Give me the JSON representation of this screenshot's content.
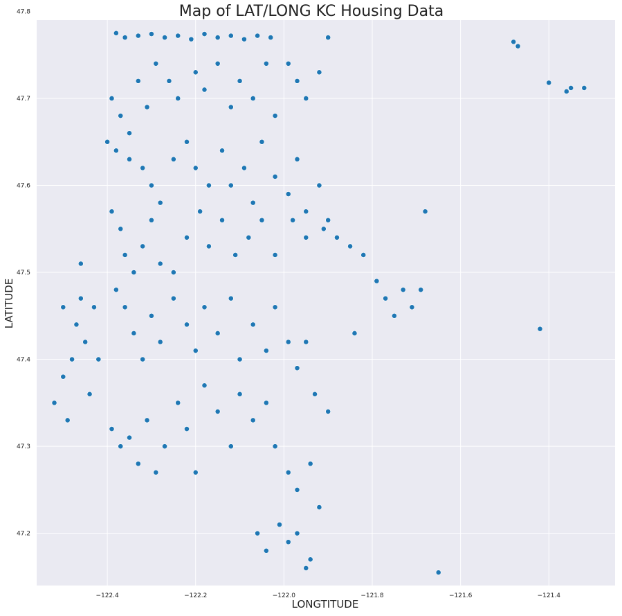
{
  "chart_data": {
    "type": "scatter",
    "title": "Map of LAT/LONG KC Housing Data",
    "xlabel": "LONGTITUDE",
    "ylabel": "LATITUDE",
    "xlim": [
      -122.56,
      -121.25
    ],
    "ylim": [
      47.14,
      47.79
    ],
    "xticks": [
      "-122.4",
      "-122.2",
      "-122.0",
      "-121.8",
      "-121.6",
      "-121.4"
    ],
    "yticks": [
      "47.2",
      "47.3",
      "47.4",
      "47.5",
      "47.6",
      "47.7",
      "47.8"
    ],
    "grid": true,
    "colors": {
      "point": "#1f77b4",
      "point_edge": "#ffffff",
      "plot_bg": "#eaeaf2",
      "grid": "#ffffff"
    },
    "series": [
      {
        "points": [
          [
            -122.38,
            47.775
          ],
          [
            -122.36,
            47.77
          ],
          [
            -122.33,
            47.772
          ],
          [
            -122.3,
            47.774
          ],
          [
            -122.27,
            47.77
          ],
          [
            -122.24,
            47.772
          ],
          [
            -122.21,
            47.768
          ],
          [
            -122.18,
            47.774
          ],
          [
            -122.15,
            47.77
          ],
          [
            -122.12,
            47.772
          ],
          [
            -122.09,
            47.768
          ],
          [
            -122.06,
            47.772
          ],
          [
            -122.03,
            47.77
          ],
          [
            -122.39,
            47.7
          ],
          [
            -122.37,
            47.68
          ],
          [
            -122.35,
            47.66
          ],
          [
            -122.33,
            47.72
          ],
          [
            -122.31,
            47.69
          ],
          [
            -122.29,
            47.74
          ],
          [
            -122.26,
            47.72
          ],
          [
            -122.24,
            47.7
          ],
          [
            -122.2,
            47.73
          ],
          [
            -122.18,
            47.71
          ],
          [
            -122.15,
            47.74
          ],
          [
            -122.12,
            47.69
          ],
          [
            -122.1,
            47.72
          ],
          [
            -122.07,
            47.7
          ],
          [
            -122.04,
            47.74
          ],
          [
            -122.02,
            47.68
          ],
          [
            -121.99,
            47.74
          ],
          [
            -121.97,
            47.72
          ],
          [
            -121.95,
            47.7
          ],
          [
            -121.92,
            47.73
          ],
          [
            -121.9,
            47.77
          ],
          [
            -122.4,
            47.65
          ],
          [
            -122.38,
            47.64
          ],
          [
            -122.35,
            47.63
          ],
          [
            -122.32,
            47.62
          ],
          [
            -122.3,
            47.6
          ],
          [
            -122.28,
            47.58
          ],
          [
            -122.25,
            47.63
          ],
          [
            -122.22,
            47.65
          ],
          [
            -122.2,
            47.62
          ],
          [
            -122.17,
            47.6
          ],
          [
            -122.14,
            47.64
          ],
          [
            -122.12,
            47.6
          ],
          [
            -122.09,
            47.62
          ],
          [
            -122.07,
            47.58
          ],
          [
            -122.05,
            47.65
          ],
          [
            -122.02,
            47.61
          ],
          [
            -121.99,
            47.59
          ],
          [
            -121.97,
            47.63
          ],
          [
            -121.95,
            47.57
          ],
          [
            -121.92,
            47.6
          ],
          [
            -121.9,
            47.56
          ],
          [
            -122.39,
            47.57
          ],
          [
            -122.37,
            47.55
          ],
          [
            -122.36,
            47.52
          ],
          [
            -122.34,
            47.5
          ],
          [
            -122.32,
            47.53
          ],
          [
            -122.3,
            47.56
          ],
          [
            -122.28,
            47.51
          ],
          [
            -122.25,
            47.5
          ],
          [
            -122.22,
            47.54
          ],
          [
            -122.19,
            47.57
          ],
          [
            -122.17,
            47.53
          ],
          [
            -122.14,
            47.56
          ],
          [
            -122.11,
            47.52
          ],
          [
            -122.08,
            47.54
          ],
          [
            -122.05,
            47.56
          ],
          [
            -122.02,
            47.52
          ],
          [
            -121.98,
            47.56
          ],
          [
            -121.95,
            47.54
          ],
          [
            -121.91,
            47.55
          ],
          [
            -121.88,
            47.54
          ],
          [
            -121.85,
            47.53
          ],
          [
            -121.82,
            47.52
          ],
          [
            -121.79,
            47.49
          ],
          [
            -121.77,
            47.47
          ],
          [
            -121.75,
            47.45
          ],
          [
            -121.73,
            47.48
          ],
          [
            -121.71,
            47.46
          ],
          [
            -121.69,
            47.48
          ],
          [
            -122.38,
            47.48
          ],
          [
            -122.36,
            47.46
          ],
          [
            -122.34,
            47.43
          ],
          [
            -122.32,
            47.4
          ],
          [
            -122.3,
            47.45
          ],
          [
            -122.28,
            47.42
          ],
          [
            -122.25,
            47.47
          ],
          [
            -122.22,
            47.44
          ],
          [
            -122.2,
            47.41
          ],
          [
            -122.18,
            47.46
          ],
          [
            -122.15,
            47.43
          ],
          [
            -122.12,
            47.47
          ],
          [
            -122.1,
            47.4
          ],
          [
            -122.07,
            47.44
          ],
          [
            -122.04,
            47.41
          ],
          [
            -122.02,
            47.46
          ],
          [
            -121.99,
            47.42
          ],
          [
            -121.97,
            47.39
          ],
          [
            -121.95,
            47.42
          ],
          [
            -121.93,
            47.36
          ],
          [
            -121.9,
            47.34
          ],
          [
            -122.39,
            47.32
          ],
          [
            -122.37,
            47.3
          ],
          [
            -122.35,
            47.31
          ],
          [
            -122.33,
            47.28
          ],
          [
            -122.31,
            47.33
          ],
          [
            -122.29,
            47.27
          ],
          [
            -122.27,
            47.3
          ],
          [
            -122.24,
            47.35
          ],
          [
            -122.22,
            47.32
          ],
          [
            -122.2,
            47.27
          ],
          [
            -122.18,
            47.37
          ],
          [
            -122.15,
            47.34
          ],
          [
            -122.12,
            47.3
          ],
          [
            -122.1,
            47.36
          ],
          [
            -122.07,
            47.33
          ],
          [
            -122.04,
            47.35
          ],
          [
            -122.02,
            47.3
          ],
          [
            -121.99,
            47.27
          ],
          [
            -121.97,
            47.25
          ],
          [
            -121.94,
            47.28
          ],
          [
            -121.92,
            47.23
          ],
          [
            -122.06,
            47.2
          ],
          [
            -122.04,
            47.18
          ],
          [
            -122.01,
            47.21
          ],
          [
            -121.99,
            47.19
          ],
          [
            -121.97,
            47.2
          ],
          [
            -121.94,
            47.17
          ],
          [
            -121.95,
            47.16
          ],
          [
            -122.52,
            47.35
          ],
          [
            -122.5,
            47.38
          ],
          [
            -122.49,
            47.33
          ],
          [
            -122.48,
            47.4
          ],
          [
            -122.47,
            47.44
          ],
          [
            -122.46,
            47.47
          ],
          [
            -122.45,
            47.42
          ],
          [
            -122.44,
            47.36
          ],
          [
            -122.43,
            47.46
          ],
          [
            -122.42,
            47.4
          ],
          [
            -122.46,
            47.51
          ],
          [
            -122.5,
            47.46
          ],
          [
            -121.84,
            47.43
          ],
          [
            -121.68,
            47.57
          ],
          [
            -121.42,
            47.435
          ],
          [
            -121.65,
            47.155
          ],
          [
            -121.48,
            47.765
          ],
          [
            -121.47,
            47.76
          ],
          [
            -121.4,
            47.718
          ],
          [
            -121.36,
            47.708
          ],
          [
            -121.35,
            47.712
          ],
          [
            -121.32,
            47.712
          ]
        ]
      }
    ]
  }
}
